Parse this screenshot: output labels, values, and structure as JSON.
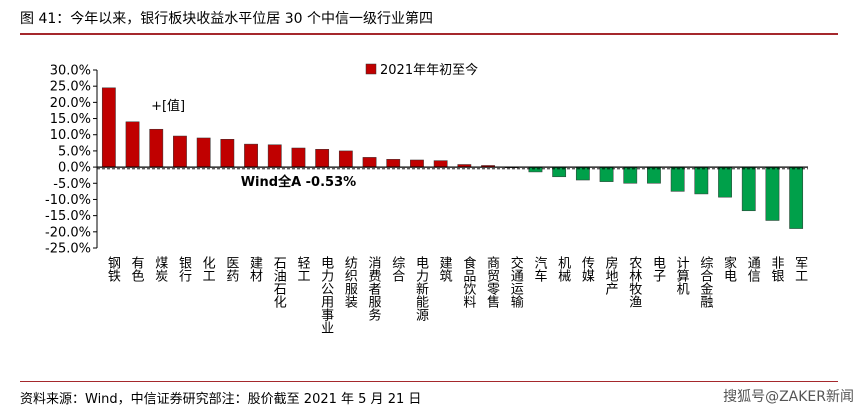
{
  "header": {
    "title": "图 41：今年以来，银行板块收益水平位居 30 个中信一级行业第四"
  },
  "footer": {
    "source": "资料来源：Wind，中信证券研究部注：股价截至 2021 年 5 月 21 日",
    "watermark": "搜狐号@ZAKER新闻"
  },
  "chart_data": {
    "type": "bar",
    "categories": [
      "钢铁",
      "有色",
      "煤炭",
      "银行",
      "化工",
      "医药",
      "建材",
      "石油石化",
      "轻工",
      "电力公用事业",
      "纺织服装",
      "消费者服务",
      "综合",
      "电力新能源",
      "建筑",
      "食品饮料",
      "商贸零售",
      "交通运输",
      "汽车",
      "机械",
      "传媒",
      "房地产",
      "农林牧渔",
      "电子",
      "计算机",
      "综合金融",
      "家电",
      "通信",
      "非银",
      "军工"
    ],
    "series": [
      {
        "name": "2021年年初至今",
        "values": [
          24.5,
          14.0,
          11.7,
          9.6,
          9.0,
          8.6,
          7.1,
          6.9,
          5.9,
          5.5,
          5.0,
          3.0,
          2.4,
          2.2,
          2.0,
          0.8,
          0.5,
          0.1,
          -1.5,
          -3.0,
          -4.0,
          -4.5,
          -5.0,
          -5.0,
          -7.5,
          -8.3,
          -9.3,
          -13.5,
          -16.5,
          -19.0
        ]
      }
    ],
    "ylim": [
      -25,
      30
    ],
    "yticks": [
      "30.0%",
      "25.0%",
      "20.0%",
      "15.0%",
      "10.0%",
      "5.0%",
      "0.0%",
      "-5.0%",
      "-10.0%",
      "-15.0%",
      "-20.0%",
      "-25.0%"
    ],
    "ytick_values": [
      30,
      25,
      20,
      15,
      10,
      5,
      0,
      -5,
      -10,
      -15,
      -20,
      -25
    ],
    "benchmark": {
      "label": "Wind全A -0.53%",
      "value": -0.53
    },
    "annotation": "+[值]",
    "colors": {
      "positive": "#c00000",
      "negative": "#00a04a",
      "title_rule": "#a5282c"
    },
    "legend_position": "top-center"
  }
}
